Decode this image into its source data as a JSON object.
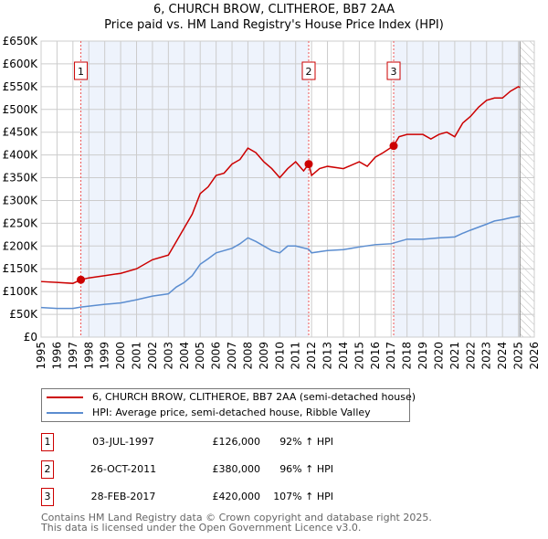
{
  "chart_data": {
    "type": "line",
    "title": "6, CHURCH BROW, CLITHEROE, BB7 2AA",
    "subtitle": "Price paid vs. HM Land Registry's House Price Index (HPI)",
    "xlim": [
      1995,
      2026
    ],
    "ylim": [
      0,
      650000
    ],
    "x_ticks": [
      "1995",
      "1996",
      "1997",
      "1998",
      "1999",
      "2000",
      "2001",
      "2002",
      "2003",
      "2004",
      "2005",
      "2006",
      "2007",
      "2008",
      "2009",
      "2010",
      "2011",
      "2012",
      "2013",
      "2014",
      "2015",
      "2016",
      "2017",
      "2018",
      "2019",
      "2020",
      "2021",
      "2022",
      "2023",
      "2024",
      "2025",
      "2026"
    ],
    "y_ticks": [
      {
        "v": 0,
        "l": "£0"
      },
      {
        "v": 50000,
        "l": "£50K"
      },
      {
        "v": 100000,
        "l": "£100K"
      },
      {
        "v": 150000,
        "l": "£150K"
      },
      {
        "v": 200000,
        "l": "£200K"
      },
      {
        "v": 250000,
        "l": "£250K"
      },
      {
        "v": 300000,
        "l": "£300K"
      },
      {
        "v": 350000,
        "l": "£350K"
      },
      {
        "v": 400000,
        "l": "£400K"
      },
      {
        "v": 450000,
        "l": "£450K"
      },
      {
        "v": 500000,
        "l": "£500K"
      },
      {
        "v": 550000,
        "l": "£550K"
      },
      {
        "v": 600000,
        "l": "£600K"
      },
      {
        "v": 650000,
        "l": "£650K"
      }
    ],
    "grid": true,
    "series": [
      {
        "name": "6, CHURCH BROW, CLITHEROE, BB7 2AA (semi-detached house)",
        "color": "#cc0000",
        "x": [
          1995,
          1996,
          1997,
          1997.5,
          1998,
          1999,
          2000,
          2001,
          2002,
          2003,
          2003.5,
          2004,
          2004.5,
          2005,
          2005.5,
          2006,
          2006.5,
          2007,
          2007.5,
          2008,
          2008.5,
          2009,
          2009.5,
          2010,
          2010.5,
          2011,
          2011.5,
          2011.82,
          2012,
          2012.5,
          2013,
          2014,
          2015,
          2015.5,
          2016,
          2016.5,
          2017.16,
          2017.5,
          2018,
          2019,
          2019.5,
          2020,
          2020.5,
          2021,
          2021.5,
          2022,
          2022.5,
          2023,
          2023.5,
          2024,
          2024.5,
          2025,
          2025.1
        ],
        "y": [
          122000,
          120000,
          118000,
          126000,
          130000,
          135000,
          140000,
          150000,
          170000,
          180000,
          210000,
          240000,
          270000,
          315000,
          330000,
          355000,
          360000,
          380000,
          390000,
          415000,
          405000,
          385000,
          370000,
          350000,
          370000,
          385000,
          365000,
          380000,
          355000,
          370000,
          375000,
          370000,
          385000,
          375000,
          395000,
          405000,
          420000,
          440000,
          445000,
          445000,
          435000,
          445000,
          450000,
          440000,
          470000,
          485000,
          505000,
          520000,
          525000,
          525000,
          540000,
          550000,
          548000
        ]
      },
      {
        "name": "HPI: Average price, semi-detached house, Ribble Valley",
        "color": "#5b8dd0",
        "x": [
          1995,
          1996,
          1997,
          1997.5,
          1998,
          1999,
          2000,
          2001,
          2002,
          2003,
          2003.5,
          2004,
          2004.5,
          2005,
          2005.5,
          2006,
          2006.5,
          2007,
          2007.5,
          2008,
          2008.5,
          2009,
          2009.5,
          2010,
          2010.5,
          2011,
          2011.82,
          2012,
          2013,
          2014,
          2015,
          2016,
          2017,
          2018,
          2019,
          2020,
          2021,
          2021.5,
          2022,
          2023,
          2023.5,
          2024,
          2024.5,
          2025,
          2025.1
        ],
        "y": [
          65000,
          63000,
          63000,
          66000,
          68000,
          72000,
          75000,
          82000,
          90000,
          95000,
          110000,
          120000,
          135000,
          160000,
          172000,
          185000,
          190000,
          195000,
          205000,
          218000,
          210000,
          200000,
          190000,
          185000,
          200000,
          200000,
          193000,
          185000,
          190000,
          192000,
          198000,
          203000,
          205000,
          215000,
          215000,
          218000,
          220000,
          228000,
          235000,
          248000,
          255000,
          258000,
          262000,
          265000,
          266000
        ]
      }
    ],
    "sales": [
      {
        "n": "1",
        "x": 1997.5,
        "price": 126000,
        "date": "03-JUL-1997",
        "price_label": "£126,000",
        "hpi": "92% ↑ HPI"
      },
      {
        "n": "2",
        "x": 2011.82,
        "price": 380000,
        "date": "26-OCT-2011",
        "price_label": "£380,000",
        "hpi": "96% ↑ HPI"
      },
      {
        "n": "3",
        "x": 2017.16,
        "price": 420000,
        "date": "28-FEB-2017",
        "price_label": "£420,000",
        "hpi": "107% ↑ HPI"
      }
    ],
    "forecast_start": 2025.1,
    "legend_position": "bottom"
  },
  "footer": {
    "line1": "Contains HM Land Registry data © Crown copyright and database right 2025.",
    "line2": "This data is licensed under the Open Government Licence v3.0."
  }
}
